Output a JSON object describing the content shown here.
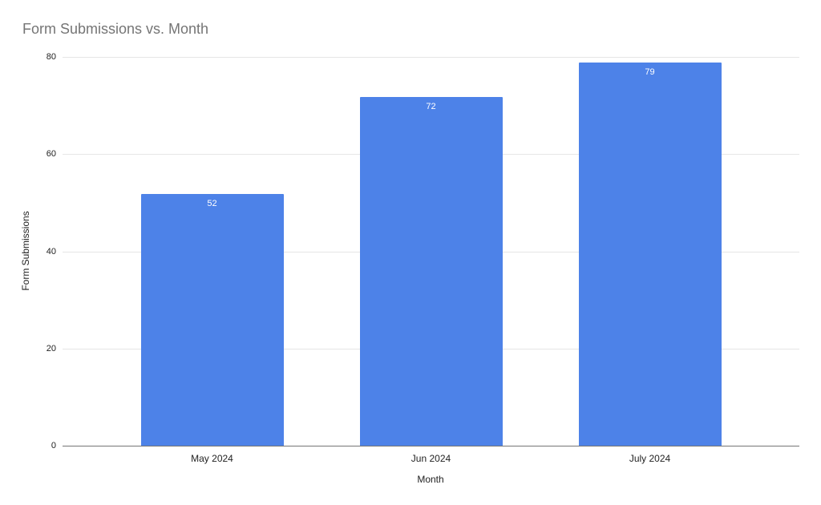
{
  "chart_data": {
    "type": "bar",
    "title": "Form Submissions vs. Month",
    "xlabel": "Month",
    "ylabel": "Form Submissions",
    "categories": [
      "May 2024",
      "Jun 2024",
      "July 2024"
    ],
    "values": [
      52,
      72,
      79
    ],
    "bar_labels": [
      "52",
      "72",
      "79"
    ],
    "ylim": [
      0,
      80
    ],
    "yticks": [
      0,
      20,
      40,
      60,
      80
    ],
    "grid": "horizontal-only",
    "legend": "none",
    "colors": {
      "bar": "#4d82e8",
      "bar_label": "#ffffff",
      "title": "#757575",
      "axis_text": "#222222",
      "gridline": "#e6e6e6",
      "axis_line": "#757575",
      "background": "#ffffff"
    }
  }
}
